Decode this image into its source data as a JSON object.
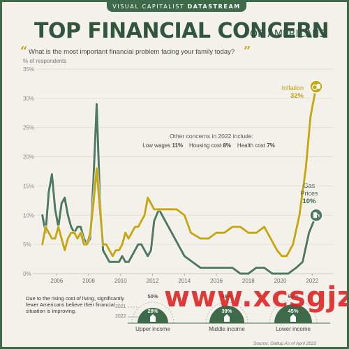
{
  "header": {
    "brand": "VISUAL CAPITALIST",
    "product": "DATASTREAM",
    "title": "TOP FINANCIAL CONCERN",
    "subtitle": "FOR AMERICANS",
    "question": "What is the most important financial problem facing your family today?"
  },
  "chart_data": {
    "type": "line",
    "ylabel": "% of respondents",
    "ylim": [
      0,
      35
    ],
    "xlim": [
      2004.5,
      2023.3
    ],
    "yticks": [
      "0%",
      "5%",
      "10%",
      "15%",
      "20%",
      "25%",
      "30%",
      "35%"
    ],
    "ytick_values": [
      0,
      5,
      10,
      15,
      20,
      25,
      30,
      35
    ],
    "xticks": [
      "2006",
      "2008",
      "2010",
      "2012",
      "2014",
      "2016",
      "2018",
      "2020",
      "2022"
    ],
    "xtick_values": [
      2006,
      2008,
      2010,
      2012,
      2014,
      2016,
      2018,
      2020,
      2022
    ],
    "grid": true,
    "series": [
      {
        "name": "Inflation",
        "color": "#c9a616",
        "points": [
          [
            2005.1,
            5
          ],
          [
            2005.3,
            8
          ],
          [
            2005.5,
            7
          ],
          [
            2005.7,
            6
          ],
          [
            2005.9,
            6
          ],
          [
            2006.1,
            8
          ],
          [
            2006.3,
            6
          ],
          [
            2006.5,
            4
          ],
          [
            2006.7,
            6
          ],
          [
            2006.9,
            7
          ],
          [
            2007.1,
            7
          ],
          [
            2007.3,
            6
          ],
          [
            2007.5,
            7
          ],
          [
            2007.7,
            5
          ],
          [
            2007.9,
            5
          ],
          [
            2008.1,
            7
          ],
          [
            2008.3,
            12
          ],
          [
            2008.5,
            18
          ],
          [
            2008.7,
            11
          ],
          [
            2008.9,
            5
          ],
          [
            2009.1,
            5
          ],
          [
            2009.3,
            4
          ],
          [
            2009.5,
            3
          ],
          [
            2009.7,
            4
          ],
          [
            2009.9,
            4
          ],
          [
            2010.1,
            5
          ],
          [
            2010.3,
            7
          ],
          [
            2010.5,
            6
          ],
          [
            2010.7,
            7
          ],
          [
            2010.9,
            8
          ],
          [
            2011.1,
            8
          ],
          [
            2011.3,
            9
          ],
          [
            2011.5,
            10
          ],
          [
            2011.7,
            13
          ],
          [
            2011.9,
            12
          ],
          [
            2012.1,
            11
          ],
          [
            2012.5,
            11
          ],
          [
            2013.0,
            11
          ],
          [
            2013.5,
            11
          ],
          [
            2014.0,
            10
          ],
          [
            2014.4,
            7
          ],
          [
            2015.0,
            6
          ],
          [
            2015.5,
            6
          ],
          [
            2016.0,
            7
          ],
          [
            2016.5,
            7
          ],
          [
            2017.0,
            8
          ],
          [
            2017.5,
            8
          ],
          [
            2018.0,
            7
          ],
          [
            2018.5,
            7
          ],
          [
            2019.0,
            8
          ],
          [
            2019.4,
            6
          ],
          [
            2019.8,
            4
          ],
          [
            2020.1,
            3
          ],
          [
            2020.4,
            3
          ],
          [
            2020.8,
            5
          ],
          [
            2021.2,
            10
          ],
          [
            2021.6,
            18
          ],
          [
            2021.9,
            27
          ],
          [
            2022.25,
            32
          ]
        ]
      },
      {
        "name": "Gas Prices",
        "color": "#4f7a5b",
        "points": [
          [
            2005.1,
            10
          ],
          [
            2005.3,
            7
          ],
          [
            2005.5,
            14
          ],
          [
            2005.7,
            17
          ],
          [
            2005.9,
            11
          ],
          [
            2006.1,
            8
          ],
          [
            2006.3,
            12
          ],
          [
            2006.5,
            13
          ],
          [
            2006.7,
            10
          ],
          [
            2006.9,
            8
          ],
          [
            2007.1,
            7
          ],
          [
            2007.3,
            8
          ],
          [
            2007.5,
            8
          ],
          [
            2007.7,
            6
          ],
          [
            2007.9,
            5
          ],
          [
            2008.1,
            6
          ],
          [
            2008.3,
            16
          ],
          [
            2008.5,
            29
          ],
          [
            2008.7,
            13
          ],
          [
            2008.9,
            4
          ],
          [
            2009.1,
            3
          ],
          [
            2009.3,
            2
          ],
          [
            2009.5,
            2
          ],
          [
            2009.7,
            2
          ],
          [
            2009.9,
            2
          ],
          [
            2010.1,
            3
          ],
          [
            2010.3,
            2
          ],
          [
            2010.5,
            2
          ],
          [
            2010.7,
            3
          ],
          [
            2010.9,
            4
          ],
          [
            2011.1,
            5
          ],
          [
            2011.3,
            5
          ],
          [
            2011.5,
            4
          ],
          [
            2011.7,
            3
          ],
          [
            2011.9,
            4
          ],
          [
            2012.1,
            9
          ],
          [
            2012.4,
            11
          ],
          [
            2012.8,
            9
          ],
          [
            2013.2,
            7
          ],
          [
            2013.6,
            5
          ],
          [
            2014.0,
            3
          ],
          [
            2014.5,
            2
          ],
          [
            2015.0,
            1
          ],
          [
            2015.5,
            1
          ],
          [
            2016.0,
            1
          ],
          [
            2016.5,
            1
          ],
          [
            2017.0,
            1
          ],
          [
            2017.5,
            0
          ],
          [
            2018.0,
            0
          ],
          [
            2018.5,
            1
          ],
          [
            2019.0,
            1
          ],
          [
            2019.5,
            0
          ],
          [
            2020.0,
            0
          ],
          [
            2020.5,
            0
          ],
          [
            2021.0,
            1
          ],
          [
            2021.4,
            2
          ],
          [
            2021.8,
            7
          ],
          [
            2022.25,
            10
          ]
        ]
      }
    ],
    "annotations": {
      "inflation_label": "Inflation",
      "inflation_value": "32%",
      "gas_label_line1": "Gas",
      "gas_label_line2": "Prices",
      "gas_value": "10%"
    }
  },
  "other_concerns": {
    "heading": "Other concerns in 2022 include:",
    "items": [
      {
        "label": "Low wages",
        "value": "11%"
      },
      {
        "label": "Housing cost",
        "value": "8%"
      },
      {
        "label": "Health cost",
        "value": "7%"
      }
    ]
  },
  "income_panel": {
    "callout": "Due to the rising cost of living, significantly fewer Americans believe their financial situation is improving.",
    "year_prev": "2021",
    "year_curr": "2022",
    "groups": [
      {
        "label": "Upper income",
        "v2021": "50%",
        "v2022": "28%"
      },
      {
        "label": "Middle income",
        "v2021": "48%",
        "v2022": "39%"
      },
      {
        "label": "Lower income",
        "v2021": "63%",
        "v2022": "45%"
      }
    ]
  },
  "source": "Source: Gallup As of April 2022",
  "watermark": "www.xcsgjz.com",
  "colors": {
    "brand_green": "#3e6a4a",
    "inflation_gold": "#c9a616",
    "gas_green": "#4f7a5b",
    "background": "#f3f1ea"
  }
}
